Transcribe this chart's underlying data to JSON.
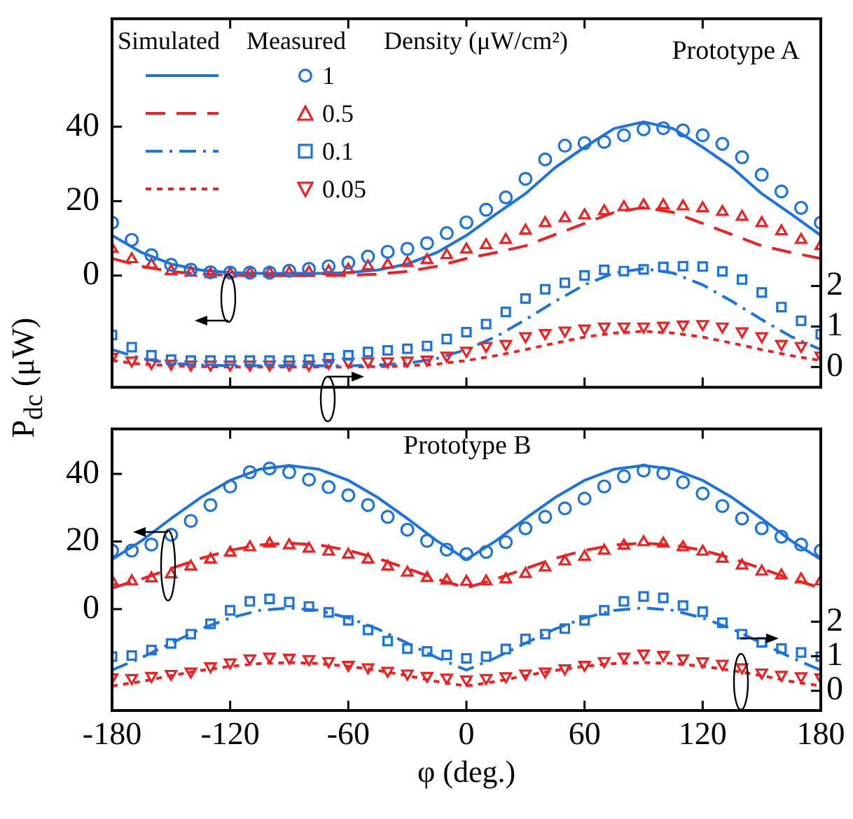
{
  "chart_data": [
    {
      "type": "line",
      "title": "Prototype A",
      "ylabel": "P$_{dc}$ (μW)",
      "legend_title": "Density (μW/cm²)",
      "annotations": [
        "Simulated",
        "Measured"
      ],
      "legend": "top left",
      "grid": false,
      "tick_labels": "y",
      "xlim": [
        -180,
        180
      ],
      "xticks": [
        -180,
        -120,
        -60,
        0,
        60,
        120,
        180
      ],
      "ylim": [
        -30,
        69
      ],
      "yticks": [
        0,
        20,
        40
      ],
      "y2lim": [
        -0.5,
        8.6
      ],
      "y2ticks": [
        0,
        1,
        2
      ],
      "x": [
        -180,
        -170,
        -160,
        -150,
        -140,
        -130,
        -120,
        -110,
        -100,
        -90,
        -80,
        -70,
        -60,
        -50,
        -40,
        -30,
        -20,
        -10,
        0,
        10,
        20,
        30,
        40,
        50,
        60,
        70,
        80,
        90,
        100,
        110,
        120,
        130,
        140,
        150,
        160,
        170,
        180
      ],
      "series": [
        {
          "type": "line",
          "line_style": "solid",
          "color": "#1a73e0",
          "x": [
            -180,
            -165,
            -150,
            -135,
            -120,
            -105,
            -90,
            -75,
            -60,
            -45,
            -30,
            -15,
            0,
            15,
            30,
            45,
            60,
            75,
            90,
            105,
            120,
            135,
            150,
            165,
            180
          ],
          "values": [
            10.8,
            6.2,
            3.1,
            1.5,
            0.8,
            0.6,
            0.6,
            0.6,
            0.8,
            1.5,
            3.1,
            6.2,
            10.8,
            16.5,
            22,
            29,
            34.5,
            39.5,
            41.3,
            39.5,
            34.5,
            29,
            22,
            16.5,
            10.8
          ]
        },
        {
          "type": "line",
          "line_style": "dashed",
          "color": "#f02020",
          "x": [
            -180,
            -165,
            -150,
            -135,
            -120,
            -105,
            -90,
            -75,
            -60,
            -45,
            -30,
            -15,
            0,
            15,
            30,
            45,
            60,
            75,
            90,
            105,
            120,
            135,
            150,
            165,
            180
          ],
          "values": [
            4.6,
            2.5,
            1.1,
            0.4,
            0.1,
            0,
            0,
            0,
            0.1,
            0.4,
            1.1,
            2.5,
            4.6,
            6.2,
            8,
            11,
            14,
            17,
            18.3,
            17,
            14,
            11,
            8,
            6.2,
            4.6
          ]
        },
        {
          "type": "line",
          "line_style": "dashdot",
          "axis": "y2",
          "color": "#1a73e0",
          "x": [
            -180,
            -165,
            -150,
            -135,
            -120,
            -105,
            -90,
            -75,
            -60,
            -45,
            -30,
            -15,
            0,
            15,
            30,
            45,
            60,
            75,
            90,
            105,
            120,
            135,
            150,
            165,
            180
          ],
          "values": [
            0.43,
            0.21,
            0.09,
            0.05,
            0.03,
            0.03,
            0.03,
            0.03,
            0.03,
            0.05,
            0.09,
            0.21,
            0.43,
            0.75,
            1.17,
            1.62,
            2.03,
            2.32,
            2.43,
            2.32,
            2.03,
            1.62,
            1.17,
            0.75,
            0.43
          ]
        },
        {
          "type": "line",
          "line_style": "dotted",
          "axis": "y2",
          "color": "#f02020",
          "x": [
            -180,
            -165,
            -150,
            -135,
            -120,
            -105,
            -90,
            -75,
            -60,
            -45,
            -30,
            -15,
            0,
            15,
            30,
            45,
            60,
            75,
            90,
            105,
            120,
            135,
            150,
            165,
            180
          ],
          "values": [
            0.16,
            0.07,
            0.03,
            0.01,
            0,
            0,
            0,
            0,
            0,
            0.01,
            0.03,
            0.07,
            0.16,
            0.28,
            0.43,
            0.59,
            0.74,
            0.84,
            0.88,
            0.84,
            0.74,
            0.59,
            0.43,
            0.28,
            0.16
          ]
        },
        {
          "name": "1",
          "type": "scatter",
          "marker": "circle",
          "color": "#1a73e0",
          "values": [
            14.2,
            9.6,
            5.5,
            2.9,
            1.6,
            0.9,
            0.8,
            0.8,
            0.8,
            1.3,
            1.8,
            2.5,
            3.5,
            5.1,
            6.4,
            7.2,
            8.7,
            11.4,
            14.3,
            17.7,
            21.0,
            26.0,
            31.2,
            34.9,
            35.6,
            35.9,
            37.7,
            39.3,
            39.6,
            39.0,
            37.7,
            35.4,
            31.8,
            27.1,
            22.6,
            18.2,
            14.2
          ]
        },
        {
          "name": "0.5",
          "type": "scatter",
          "marker": "triangle",
          "color": "#f02020",
          "values": [
            7.2,
            4.4,
            2.9,
            1.2,
            0.8,
            0.4,
            0.5,
            0.7,
            0.7,
            0.7,
            0.9,
            1.2,
            1.6,
            2.5,
            2.9,
            3.4,
            4.2,
            5.5,
            7.0,
            8.2,
            9.6,
            12.1,
            14.1,
            15.4,
            16.2,
            17.3,
            18.4,
            18.9,
            18.9,
            18.6,
            18.1,
            17.1,
            15.8,
            14.1,
            11.9,
            9.6,
            8.0
          ]
        },
        {
          "name": "0.1",
          "type": "scatter",
          "marker": "square",
          "axis": "y2",
          "color": "#1a73e0",
          "values": [
            0.79,
            0.49,
            0.29,
            0.18,
            0.16,
            0.16,
            0.16,
            0.16,
            0.16,
            0.16,
            0.18,
            0.22,
            0.29,
            0.37,
            0.41,
            0.45,
            0.52,
            0.69,
            0.86,
            1.06,
            1.36,
            1.69,
            1.92,
            2.08,
            2.26,
            2.4,
            2.37,
            2.41,
            2.47,
            2.49,
            2.48,
            2.36,
            2.16,
            1.84,
            1.48,
            1.14,
            0.81
          ]
        },
        {
          "name": "0.05",
          "type": "scatter",
          "marker": "triangle-down",
          "axis": "y2",
          "color": "#f02020",
          "values": [
            0.25,
            0.16,
            0.1,
            0.08,
            0.06,
            0.06,
            0.06,
            0.06,
            0.06,
            0.06,
            0.06,
            0.1,
            0.13,
            0.14,
            0.14,
            0.16,
            0.18,
            0.28,
            0.4,
            0.52,
            0.57,
            0.76,
            0.84,
            0.9,
            0.95,
            1.0,
            1.0,
            1.0,
            1.02,
            1.05,
            1.06,
            1.0,
            0.88,
            0.76,
            0.57,
            0.52,
            0.28
          ]
        }
      ]
    },
    {
      "type": "line",
      "title": "Prototype B",
      "xlabel": "φ (deg.)",
      "grid": false,
      "xlim": [
        -180,
        180
      ],
      "xticks": [
        -180,
        -120,
        -60,
        0,
        60,
        120,
        180
      ],
      "ylim": [
        -30,
        53.3
      ],
      "yticks": [
        0,
        20,
        40
      ],
      "y2lim": [
        -0.57,
        7.58
      ],
      "y2ticks": [
        0,
        1,
        2
      ],
      "x": [
        -180,
        -170,
        -160,
        -150,
        -140,
        -130,
        -120,
        -110,
        -100,
        -90,
        -80,
        -70,
        -60,
        -50,
        -40,
        -30,
        -20,
        -10,
        0,
        10,
        20,
        30,
        40,
        50,
        60,
        70,
        80,
        90,
        100,
        110,
        120,
        130,
        140,
        150,
        160,
        170,
        180
      ],
      "series": [
        {
          "type": "line",
          "line_style": "solid",
          "color": "#1a73e0",
          "x": [
            -180,
            -165,
            -150,
            -135,
            -120,
            -105,
            -90,
            -75,
            -60,
            -45,
            -30,
            -15,
            0,
            15,
            30,
            45,
            60,
            75,
            90,
            105,
            120,
            135,
            150,
            165,
            180
          ],
          "values": [
            14.7,
            20.2,
            26.8,
            33.0,
            38.1,
            41.4,
            42.5,
            41.4,
            38.1,
            33.0,
            26.8,
            20.2,
            14.7,
            20.2,
            26.8,
            33.0,
            38.1,
            41.4,
            42.5,
            41.4,
            38.1,
            33.0,
            26.8,
            20.2,
            14.7
          ]
        },
        {
          "type": "line",
          "line_style": "dashed",
          "color": "#f02020",
          "x": [
            -180,
            -165,
            -150,
            -135,
            -120,
            -105,
            -90,
            -75,
            -60,
            -45,
            -30,
            -15,
            0,
            15,
            30,
            45,
            60,
            75,
            90,
            105,
            120,
            135,
            150,
            165,
            180
          ],
          "values": [
            6.3,
            8.9,
            12.0,
            15.0,
            17.4,
            19.0,
            19.5,
            19.0,
            17.4,
            15.0,
            12.0,
            8.9,
            6.3,
            8.9,
            12.0,
            15.0,
            17.4,
            19.0,
            19.5,
            19.0,
            17.4,
            15.0,
            12.0,
            8.9,
            6.3
          ]
        },
        {
          "type": "line",
          "line_style": "dashdot",
          "axis": "y2",
          "color": "#1a73e0",
          "x": [
            -180,
            -165,
            -150,
            -135,
            -120,
            -105,
            -90,
            -75,
            -60,
            -45,
            -30,
            -15,
            0,
            15,
            30,
            45,
            60,
            75,
            90,
            105,
            120,
            135,
            150,
            165,
            180
          ],
          "values": [
            0.6,
            0.96,
            1.38,
            1.79,
            2.11,
            2.33,
            2.4,
            2.33,
            2.11,
            1.79,
            1.38,
            0.96,
            0.6,
            0.96,
            1.38,
            1.79,
            2.11,
            2.33,
            2.4,
            2.33,
            2.11,
            1.79,
            1.38,
            0.96,
            0.6
          ]
        },
        {
          "type": "line",
          "line_style": "dotted",
          "axis": "y2",
          "color": "#f02020",
          "x": [
            -180,
            -165,
            -150,
            -135,
            -120,
            -105,
            -90,
            -75,
            -60,
            -45,
            -30,
            -15,
            0,
            15,
            30,
            45,
            60,
            75,
            90,
            105,
            120,
            135,
            150,
            165,
            180
          ],
          "values": [
            0.14,
            0.27,
            0.44,
            0.59,
            0.71,
            0.79,
            0.82,
            0.79,
            0.71,
            0.59,
            0.44,
            0.27,
            0.14,
            0.27,
            0.44,
            0.59,
            0.71,
            0.79,
            0.82,
            0.79,
            0.71,
            0.59,
            0.44,
            0.27,
            0.14
          ]
        },
        {
          "type": "scatter",
          "marker": "circle",
          "color": "#1a73e0",
          "values": [
            17.3,
            17.3,
            19.1,
            22.0,
            26.1,
            30.8,
            36.3,
            40.5,
            41.6,
            40.5,
            38.3,
            36.1,
            33.7,
            30.8,
            27.3,
            23.5,
            20.2,
            17.6,
            16.3,
            16.9,
            19.8,
            23.9,
            27.3,
            29.8,
            32.7,
            36.3,
            39.3,
            41.0,
            40.2,
            37.5,
            34.2,
            30.5,
            26.8,
            23.9,
            21.4,
            19.1,
            17.3
          ]
        },
        {
          "type": "scatter",
          "marker": "triangle",
          "color": "#f02020",
          "values": [
            8.2,
            8.2,
            9.1,
            10.3,
            12.6,
            14.7,
            16.7,
            18.3,
            19.4,
            18.9,
            17.9,
            17.0,
            16.1,
            14.7,
            12.6,
            10.8,
            9.2,
            8.5,
            8.1,
            8.2,
            8.8,
            10.4,
            12.3,
            14.1,
            15.5,
            17.3,
            18.8,
            19.8,
            19.4,
            18.3,
            17.0,
            14.9,
            12.9,
            11.1,
            10.0,
            8.8,
            8.2
          ]
        },
        {
          "type": "scatter",
          "marker": "square",
          "axis": "y2",
          "color": "#1a73e0",
          "values": [
            0.99,
            1.02,
            1.18,
            1.37,
            1.64,
            1.94,
            2.33,
            2.59,
            2.66,
            2.57,
            2.44,
            2.27,
            2.04,
            1.76,
            1.44,
            1.22,
            1.14,
            1.04,
            0.94,
            0.99,
            1.21,
            1.5,
            1.64,
            1.8,
            2.04,
            2.33,
            2.59,
            2.73,
            2.69,
            2.47,
            2.29,
            1.97,
            1.64,
            1.4,
            1.22,
            1.11,
            0.99
          ]
        },
        {
          "type": "scatter",
          "marker": "triangle-down",
          "axis": "y2",
          "color": "#f02020",
          "values": [
            0.39,
            0.37,
            0.43,
            0.49,
            0.56,
            0.71,
            0.82,
            0.94,
            0.99,
            0.96,
            0.92,
            0.86,
            0.75,
            0.68,
            0.58,
            0.5,
            0.43,
            0.38,
            0.33,
            0.37,
            0.42,
            0.5,
            0.56,
            0.65,
            0.75,
            0.86,
            0.99,
            1.08,
            1.04,
            0.94,
            0.85,
            0.78,
            0.68,
            0.53,
            0.46,
            0.42,
            0.39
          ]
        }
      ]
    }
  ]
}
